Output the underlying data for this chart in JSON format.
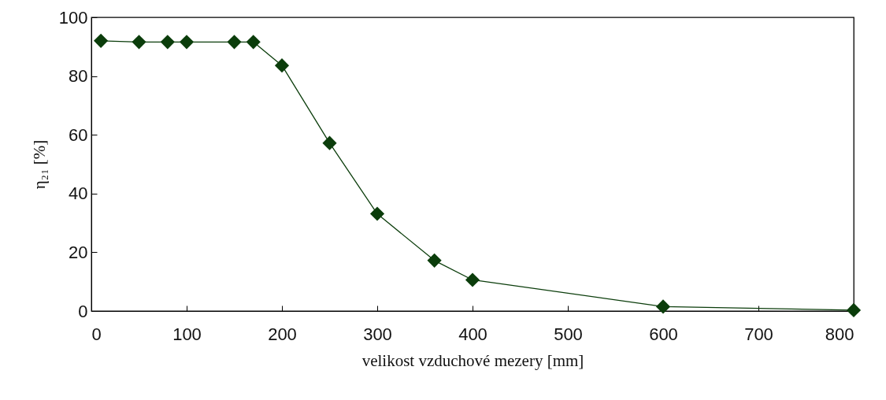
{
  "chart_data": {
    "type": "line",
    "xlabel": "velikost vzduchové mezery  [mm]",
    "ylabel": "η₂₁ [%]",
    "x": [
      10,
      50,
      80,
      100,
      150,
      170,
      200,
      250,
      300,
      360,
      400,
      600,
      800
    ],
    "series": [
      {
        "color": "#0b3d0b",
        "values": [
          92,
          91.6,
          91.6,
          91.6,
          91.6,
          91.6,
          83.6,
          57.2,
          33.1,
          17.2,
          10.6,
          1.5,
          0.3
        ]
      }
    ],
    "xlim": [
      0,
      800
    ],
    "xticks": [
      0,
      100,
      200,
      300,
      400,
      500,
      600,
      700,
      800
    ],
    "ylim": [
      0,
      100
    ],
    "yticks": [
      0,
      20,
      40,
      60,
      80,
      100
    ],
    "grid": false,
    "marker": "diamond",
    "line_style": "solid"
  }
}
